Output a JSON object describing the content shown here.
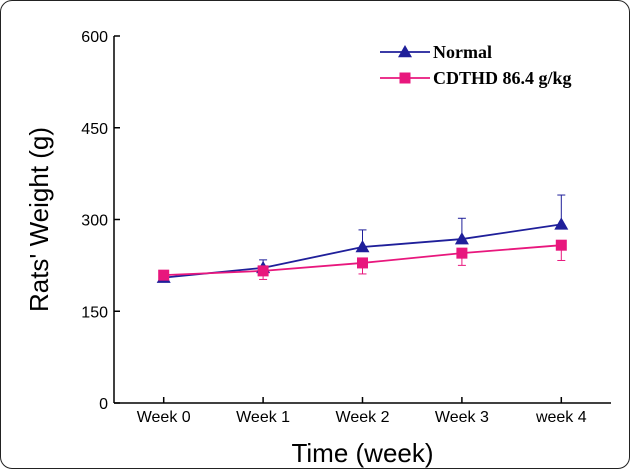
{
  "chart_data": {
    "type": "line",
    "categories": [
      "Week 0",
      "Week 1",
      "Week 2",
      "Week 3",
      "week 4"
    ],
    "xlabel": "Time (week)",
    "ylabel": "Rats' Weight (g)",
    "ylim": [
      0,
      600
    ],
    "yticks": [
      "0",
      "150",
      "300",
      "450",
      "600"
    ],
    "grid": false,
    "legend_position": "top-right",
    "series": [
      {
        "name": "Normal",
        "color": "#1f1f9a",
        "marker": "triangle",
        "values": [
          205,
          221,
          255,
          268,
          292
        ],
        "error": [
          0,
          13,
          28,
          34,
          48
        ]
      },
      {
        "name": "CDTHD 86.4 g/kg",
        "color": "#e8177d",
        "marker": "square",
        "values": [
          209,
          216,
          229,
          245,
          258
        ],
        "error": [
          0,
          14,
          18,
          20,
          25
        ]
      }
    ]
  }
}
